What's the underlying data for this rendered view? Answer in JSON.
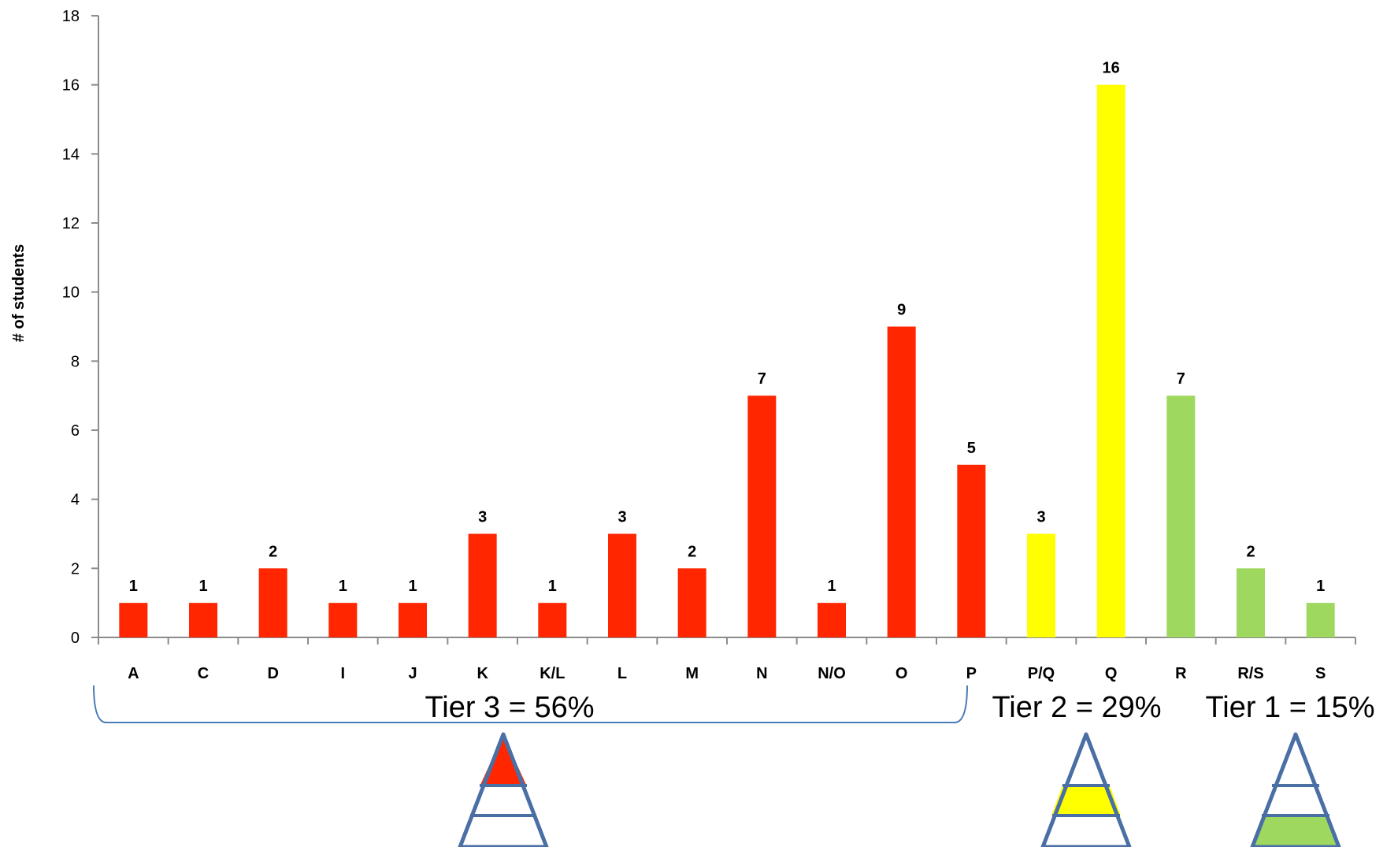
{
  "chart_data": {
    "type": "bar",
    "ylabel": "# of students",
    "xlabel": "",
    "ylim": [
      0,
      18
    ],
    "yticks": [
      0,
      2,
      4,
      6,
      8,
      10,
      12,
      14,
      16,
      18
    ],
    "grid": false,
    "categories": [
      "A",
      "C",
      "D",
      "I",
      "J",
      "K",
      "K/L",
      "L",
      "M",
      "N",
      "N/O",
      "O",
      "P",
      "P/Q",
      "Q",
      "R",
      "R/S",
      "S"
    ],
    "values": [
      1,
      1,
      2,
      1,
      1,
      3,
      1,
      3,
      2,
      7,
      1,
      9,
      5,
      3,
      16,
      7,
      2,
      1
    ],
    "bar_colors": [
      "#ff2600",
      "#ff2600",
      "#ff2600",
      "#ff2600",
      "#ff2600",
      "#ff2600",
      "#ff2600",
      "#ff2600",
      "#ff2600",
      "#ff2600",
      "#ff2600",
      "#ff2600",
      "#ff2600",
      "#ffff00",
      "#ffff00",
      "#9fd85f",
      "#9fd85f",
      "#9fd85f"
    ],
    "data_labels": true
  },
  "tiers": [
    {
      "label": "Tier 3 = 56%",
      "color": "#ff2600",
      "band": "top"
    },
    {
      "label": "Tier 2 = 29%",
      "color": "#ffff00",
      "band": "middle"
    },
    {
      "label": "Tier 1 = 15%",
      "color": "#9fd85f",
      "band": "bottom"
    }
  ],
  "colors": {
    "axis": "#8c8c8c",
    "bracket": "#4a7ab8",
    "pyramid_outline": "#4a6fa5"
  }
}
